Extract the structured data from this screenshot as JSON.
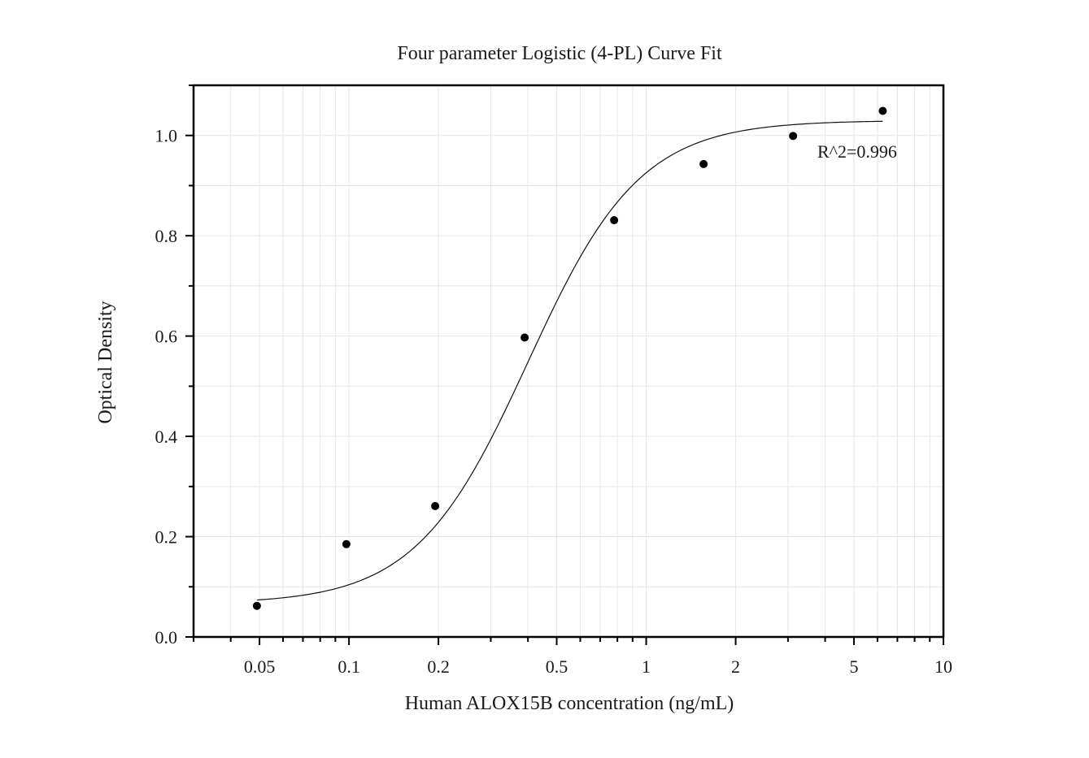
{
  "chart_data": {
    "type": "scatter",
    "title": "Four parameter Logistic (4-PL) Curve Fit",
    "xlabel": "Human ALOX15B concentration (ng/mL)",
    "ylabel": "Optical Density",
    "x_scale": "log",
    "xlim": [
      0.03,
      10
    ],
    "ylim": [
      0.0,
      1.1
    ],
    "x_ticks": [
      0.05,
      0.1,
      0.2,
      0.5,
      1,
      2,
      5,
      10
    ],
    "x_tick_labels": [
      "0.05",
      "0.1",
      "0.2",
      "0.5",
      "1",
      "2",
      "5",
      "10"
    ],
    "y_ticks": [
      0.0,
      0.2,
      0.4,
      0.6,
      0.8,
      1.0
    ],
    "y_tick_labels": [
      "0.0",
      "0.2",
      "0.4",
      "0.6",
      "0.8",
      "1.0"
    ],
    "grid": true,
    "series": [
      {
        "type": "scatter",
        "x": [
          0.049,
          0.098,
          0.195,
          0.39,
          0.78,
          1.56,
          3.12,
          6.25
        ],
        "y": [
          0.062,
          0.185,
          0.261,
          0.597,
          0.831,
          0.943,
          0.999,
          1.049
        ]
      },
      {
        "type": "line",
        "fit": "4PL",
        "params": {
          "A": 0.066,
          "B": 2.3,
          "C": 0.4,
          "D": 1.03
        },
        "x_range": [
          0.049,
          6.25
        ]
      }
    ],
    "annotations": [
      {
        "text": "R^2=0.996"
      }
    ]
  }
}
